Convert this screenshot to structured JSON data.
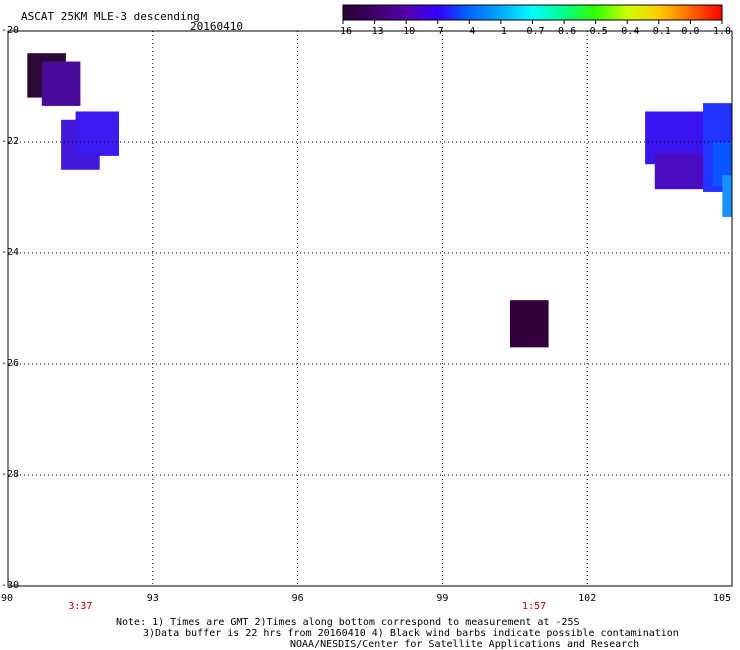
{
  "header": {
    "title": "ASCAT 25KM MLE-3 descending",
    "date": "20160410"
  },
  "colorbar": {
    "labels": [
      "-16",
      "-13",
      "-10",
      "-7",
      "-4",
      "-1",
      "-0.7",
      "-0.6",
      "-0.5",
      "-0.4",
      "-0.1",
      "0.0",
      "1.0"
    ],
    "colors": [
      "#2a0033",
      "#3d0066",
      "#5500aa",
      "#3300ff",
      "#0066ff",
      "#00aaff",
      "#00ffff",
      "#00ff88",
      "#33ff00",
      "#ccff00",
      "#ffcc00",
      "#ff6600",
      "#ff0000"
    ]
  },
  "axes": {
    "x_ticks": [
      "90",
      "93",
      "96",
      "99",
      "102",
      "105"
    ],
    "y_ticks": [
      "-20",
      "-22",
      "-24",
      "-26",
      "-28",
      "-30"
    ],
    "x_range": [
      90,
      105
    ],
    "y_range": [
      -30,
      -20
    ],
    "grid": "dotted"
  },
  "pass_times": [
    {
      "time": "3:37",
      "lon": 91.5
    },
    {
      "time": "1:57",
      "lon": 100.9
    }
  ],
  "notes": [
    "Note: 1) Times are GMT 2)Times along bottom correspond to measurement at -25S",
    "3)Data buffer is 22 hrs from 20160410 4) Black wind barbs indicate possible contamination",
    "NOAA/NESDIS/Center for Satellite Applications and Research"
  ],
  "map_data": {
    "cells": [
      {
        "lon0": 90.4,
        "lon1": 91.2,
        "lat0": -20.4,
        "lat1": -21.2,
        "color": "#2a0a33"
      },
      {
        "lon0": 90.7,
        "lon1": 91.5,
        "lat0": -20.55,
        "lat1": -21.35,
        "color": "#4a0a99"
      },
      {
        "lon0": 91.1,
        "lon1": 91.9,
        "lat0": -21.6,
        "lat1": -22.5,
        "color": "#4418d8"
      },
      {
        "lon0": 91.4,
        "lon1": 92.3,
        "lat0": -21.45,
        "lat1": -22.25,
        "color": "#3a1aee"
      },
      {
        "lon0": 100.4,
        "lon1": 101.2,
        "lat0": -24.85,
        "lat1": -25.7,
        "color": "#33003d"
      },
      {
        "lon0": 103.2,
        "lon1": 104.7,
        "lat0": -21.45,
        "lat1": -22.4,
        "color": "#3a14ee"
      },
      {
        "lon0": 103.4,
        "lon1": 104.5,
        "lat0": -22.2,
        "lat1": -22.85,
        "color": "#4a0cc0"
      },
      {
        "lon0": 104.4,
        "lon1": 105.0,
        "lat0": -21.3,
        "lat1": -22.9,
        "color": "#2233ff"
      },
      {
        "lon0": 104.6,
        "lon1": 105.0,
        "lat0": -22.0,
        "lat1": -22.8,
        "color": "#0a55ff"
      },
      {
        "lon0": 104.8,
        "lon1": 105.0,
        "lat0": -22.6,
        "lat1": -23.35,
        "color": "#1a90ff"
      }
    ]
  }
}
